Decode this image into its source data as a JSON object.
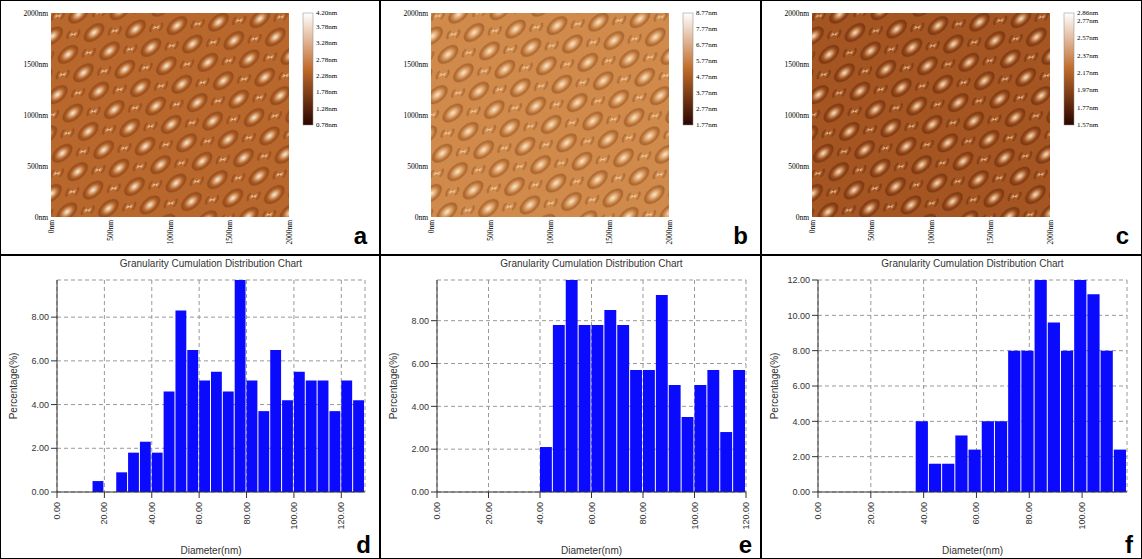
{
  "chart_data": [
    {
      "type": "afm_image",
      "panel": "a",
      "xlim": [
        0,
        2000
      ],
      "ylim": [
        0,
        2000
      ],
      "xticks": [
        {
          "value": 0,
          "label": "0nm"
        },
        {
          "value": 500,
          "label": "500nm"
        },
        {
          "value": 1000,
          "label": "1000nm"
        },
        {
          "value": 1500,
          "label": "1500nm"
        },
        {
          "value": 2000,
          "label": "2000nm"
        }
      ],
      "yticks": [
        {
          "value": 0,
          "label": "0nm"
        },
        {
          "value": 500,
          "label": "500nm"
        },
        {
          "value": 1000,
          "label": "1000nm"
        },
        {
          "value": 1500,
          "label": "1500nm"
        },
        {
          "value": 2000,
          "label": "2000nm"
        }
      ],
      "colorbar_range": [
        0.78,
        4.2
      ],
      "colorbar_ticks": [
        {
          "value": 4.2,
          "label": "4.20nm"
        },
        {
          "value": 3.78,
          "label": "3.78nm"
        },
        {
          "value": 3.28,
          "label": "3.28nm"
        },
        {
          "value": 2.78,
          "label": "2.78nm"
        },
        {
          "value": 2.28,
          "label": "2.28nm"
        },
        {
          "value": 1.78,
          "label": "1.78nm"
        },
        {
          "value": 1.28,
          "label": "1.28nm"
        },
        {
          "value": 0.78,
          "label": "0.78nm"
        }
      ]
    },
    {
      "type": "afm_image",
      "panel": "b",
      "xlim": [
        0,
        2000
      ],
      "ylim": [
        0,
        2000
      ],
      "xticks": [
        {
          "value": 0,
          "label": "0nm"
        },
        {
          "value": 500,
          "label": "500nm"
        },
        {
          "value": 1000,
          "label": "1000nm"
        },
        {
          "value": 1500,
          "label": "1500nm"
        },
        {
          "value": 2000,
          "label": "2000nm"
        }
      ],
      "yticks": [
        {
          "value": 0,
          "label": "0nm"
        },
        {
          "value": 500,
          "label": "500nm"
        },
        {
          "value": 1000,
          "label": "1000nm"
        },
        {
          "value": 1500,
          "label": "1500nm"
        },
        {
          "value": 2000,
          "label": "2000nm"
        }
      ],
      "colorbar_range": [
        1.77,
        8.77
      ],
      "colorbar_ticks": [
        {
          "value": 8.77,
          "label": "8.77nm"
        },
        {
          "value": 7.77,
          "label": "7.77nm"
        },
        {
          "value": 6.77,
          "label": "6.77nm"
        },
        {
          "value": 5.77,
          "label": "5.77nm"
        },
        {
          "value": 4.77,
          "label": "4.77nm"
        },
        {
          "value": 3.77,
          "label": "3.77nm"
        },
        {
          "value": 2.77,
          "label": "2.77nm"
        },
        {
          "value": 1.77,
          "label": "1.77nm"
        }
      ]
    },
    {
      "type": "afm_image",
      "panel": "c",
      "xlim": [
        0,
        2000
      ],
      "ylim": [
        0,
        2000
      ],
      "xticks": [
        {
          "value": 0,
          "label": "0nm"
        },
        {
          "value": 500,
          "label": "500nm"
        },
        {
          "value": 1000,
          "label": "1000nm"
        },
        {
          "value": 1500,
          "label": "1500nm"
        },
        {
          "value": 2000,
          "label": "2000nm"
        }
      ],
      "yticks": [
        {
          "value": 0,
          "label": "0nm"
        },
        {
          "value": 500,
          "label": "500nm"
        },
        {
          "value": 1000,
          "label": "1000nm"
        },
        {
          "value": 1500,
          "label": "1500nm"
        },
        {
          "value": 2000,
          "label": "2000nm"
        }
      ],
      "colorbar_range": [
        1.57,
        2.86
      ],
      "colorbar_ticks": [
        {
          "value": 2.86,
          "label": "2.86nm"
        },
        {
          "value": 2.77,
          "label": "2.77nm"
        },
        {
          "value": 2.57,
          "label": "2.57nm"
        },
        {
          "value": 2.37,
          "label": "2.37nm"
        },
        {
          "value": 2.17,
          "label": "2.17nm"
        },
        {
          "value": 1.97,
          "label": "1.97nm"
        },
        {
          "value": 1.77,
          "label": "1.77nm"
        },
        {
          "value": 1.57,
          "label": "1.57nm"
        }
      ]
    },
    {
      "type": "histogram",
      "panel": "d",
      "title": "Granularity Cumulation Distribution Chart",
      "x_label": "Diameter(nm)",
      "y_label": "Percentage(%)",
      "color": "#0a0aff",
      "grid": true,
      "bins": [
        15,
        20,
        25,
        30,
        35,
        40,
        45,
        50,
        55,
        60,
        65,
        70,
        75,
        80,
        85,
        90,
        95,
        100,
        105,
        110,
        115,
        120,
        125,
        130
      ],
      "values": [
        0.5,
        0,
        0.9,
        1.8,
        2.3,
        1.8,
        4.6,
        8.3,
        6.5,
        5.1,
        5.5,
        4.6,
        9.7,
        5.1,
        3.7,
        6.5,
        4.2,
        5.5,
        5.1,
        5.1,
        3.7,
        5.1,
        4.2
      ],
      "xlim": [
        0,
        130
      ],
      "xticks": [
        {
          "value": 0,
          "label": "0.00"
        },
        {
          "value": 20,
          "label": "20.00"
        },
        {
          "value": 40,
          "label": "40.00"
        },
        {
          "value": 60,
          "label": "60.00"
        },
        {
          "value": 80,
          "label": "80.00"
        },
        {
          "value": 100,
          "label": "100.00"
        },
        {
          "value": 120,
          "label": "120.00"
        }
      ],
      "ylim": [
        0,
        9.7
      ],
      "yticks": [
        {
          "value": 0,
          "label": "0.00"
        },
        {
          "value": 2,
          "label": "2.00"
        },
        {
          "value": 4,
          "label": "4.00"
        },
        {
          "value": 6,
          "label": "6.00"
        },
        {
          "value": 8,
          "label": "8.00"
        }
      ]
    },
    {
      "type": "histogram",
      "panel": "e",
      "title": "Granularity Cumulation Distribution Chart",
      "x_label": "Diameter(nm)",
      "y_label": "Percentage(%)",
      "color": "#0a0aff",
      "grid": true,
      "bins": [
        40,
        45,
        50,
        55,
        60,
        65,
        70,
        75,
        80,
        85,
        90,
        95,
        100,
        105,
        110,
        115,
        120
      ],
      "values": [
        2.1,
        7.8,
        9.9,
        7.8,
        7.8,
        8.5,
        7.8,
        5.7,
        5.7,
        9.2,
        5.0,
        3.5,
        5.0,
        5.7,
        2.8,
        5.7
      ],
      "xlim": [
        0,
        120
      ],
      "xticks": [
        {
          "value": 0,
          "label": "0.00"
        },
        {
          "value": 20,
          "label": "20.00"
        },
        {
          "value": 40,
          "label": "40.00"
        },
        {
          "value": 60,
          "label": "60.00"
        },
        {
          "value": 80,
          "label": "80.00"
        },
        {
          "value": 100,
          "label": "100.00"
        },
        {
          "value": 120,
          "label": "120.00"
        }
      ],
      "ylim": [
        0,
        9.9
      ],
      "yticks": [
        {
          "value": 0,
          "label": "0.00"
        },
        {
          "value": 2,
          "label": "2.00"
        },
        {
          "value": 4,
          "label": "4.00"
        },
        {
          "value": 6,
          "label": "6.00"
        },
        {
          "value": 8,
          "label": "8.00"
        }
      ]
    },
    {
      "type": "histogram",
      "panel": "f",
      "title": "Granularity Cumulation Distribution Chart",
      "x_label": "Diameter(nm)",
      "y_label": "Percentage(%)",
      "color": "#0a0aff",
      "grid": true,
      "bins": [
        37,
        42,
        47,
        52,
        57,
        62,
        67,
        72,
        77,
        82,
        87,
        92,
        97,
        102,
        107,
        112,
        117
      ],
      "values": [
        4.0,
        1.6,
        1.6,
        3.2,
        2.4,
        4.0,
        4.0,
        8.0,
        8.0,
        12.0,
        9.6,
        8.0,
        12.0,
        11.2,
        8.0,
        2.4
      ],
      "xlim": [
        0,
        117
      ],
      "xticks": [
        {
          "value": 0,
          "label": "0.00"
        },
        {
          "value": 20,
          "label": "20.00"
        },
        {
          "value": 40,
          "label": "40.00"
        },
        {
          "value": 60,
          "label": "60.00"
        },
        {
          "value": 80,
          "label": "80.00"
        },
        {
          "value": 100,
          "label": "100.00"
        }
      ],
      "ylim": [
        0,
        12
      ],
      "yticks": [
        {
          "value": 0,
          "label": "0.00"
        },
        {
          "value": 2,
          "label": "2.00"
        },
        {
          "value": 4,
          "label": "4.00"
        },
        {
          "value": 6,
          "label": "6.00"
        },
        {
          "value": 8,
          "label": "8.00"
        },
        {
          "value": 10,
          "label": "10.00"
        },
        {
          "value": 12,
          "label": "12.00"
        }
      ]
    }
  ]
}
